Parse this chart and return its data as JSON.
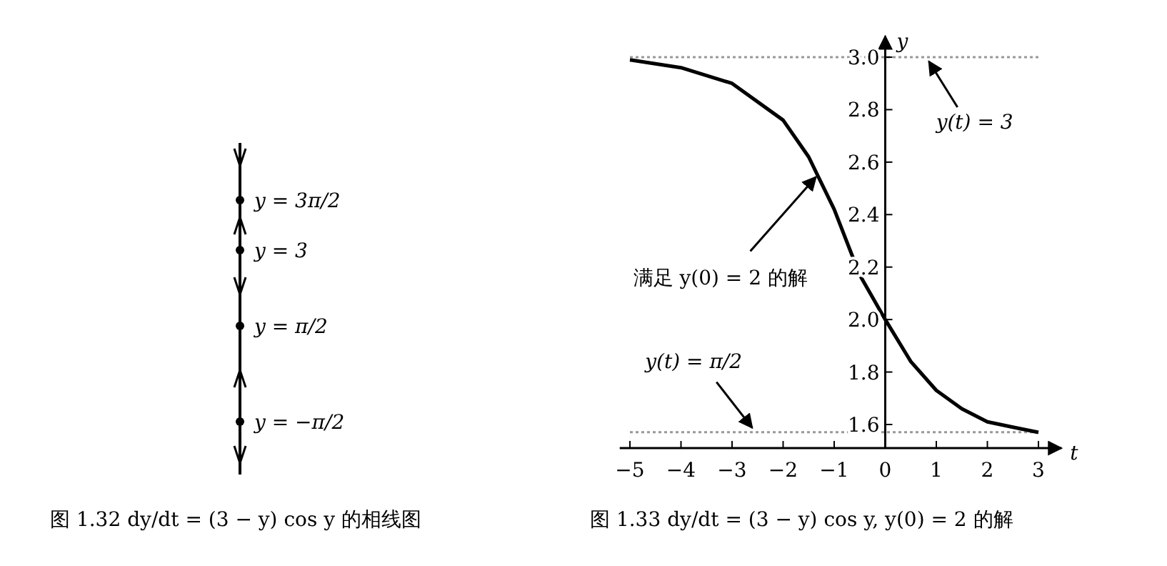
{
  "chart_data": [
    {
      "type": "other",
      "title": "图 1.32 dy/dt = (3 − y) cos y 的相线图",
      "annotations": [
        "y = 3π/2",
        "y = 3",
        "y = π/2",
        "y = −π/2"
      ]
    },
    {
      "type": "line",
      "title": "图 1.33 dy/dt = (3 − y) cos y, y(0) = 2 的解",
      "xlabel": "t",
      "ylabel": "y",
      "x": [
        -5,
        -4,
        -3,
        -2,
        -1.5,
        -1,
        -0.5,
        0,
        0.5,
        1,
        1.5,
        2,
        2.5,
        3
      ],
      "series": [
        {
          "color": "#000000",
          "values": [
            2.99,
            2.96,
            2.9,
            2.76,
            2.62,
            2.42,
            2.17,
            2.0,
            1.84,
            1.73,
            1.66,
            1.61,
            1.59,
            1.57
          ]
        }
      ],
      "xlim": [
        -5.2,
        3.45
      ],
      "ylim": [
        1.51,
        3.08
      ],
      "xticks": [
        -5,
        -4,
        -3,
        -2,
        -1,
        0,
        1,
        2,
        3
      ],
      "yticks": [
        1.6,
        1.8,
        {
          "value": 2,
          "label": "2.0"
        },
        2.2,
        2.4,
        2.6,
        2.8,
        {
          "value": 3,
          "label": "3.0"
        }
      ],
      "ref_lines": [
        {
          "axis": "y",
          "value": 3,
          "label": "y(t) = 3",
          "color": "#999999",
          "line_style": "dotted"
        },
        {
          "axis": "y",
          "value": 1.571,
          "label": "y(t) = π/2",
          "color": "#999999",
          "line_style": "dotted"
        }
      ],
      "annotations": [
        {
          "text": "满足 y(0) = 2 的解",
          "x": -1.3,
          "y": 2.56
        }
      ],
      "grid": false,
      "marker": "none",
      "line_style": "solid"
    }
  ]
}
